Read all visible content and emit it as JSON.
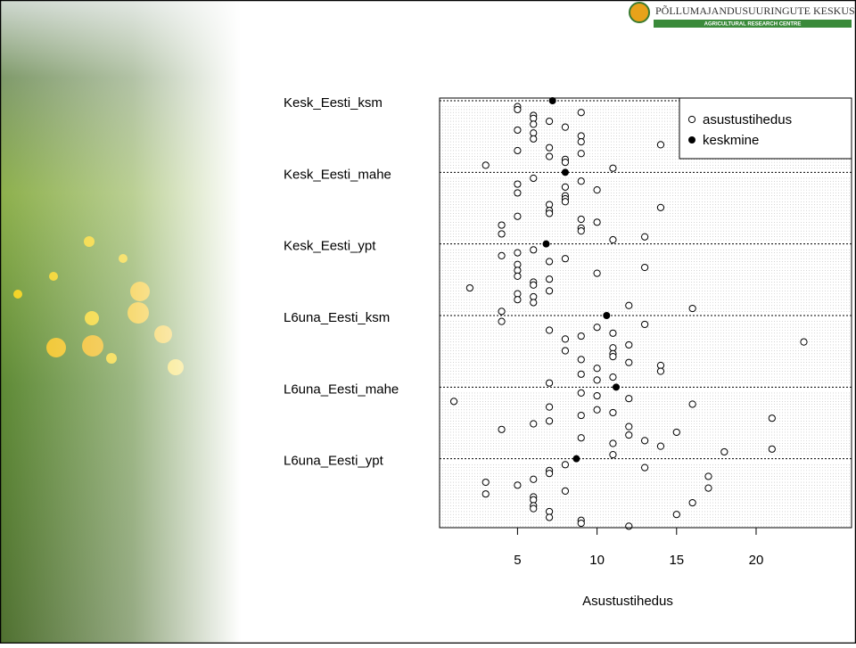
{
  "header": {
    "title": "PÕLLUMAJANDUSUURINGUTE KESKUS",
    "subtitle": "AGRICULTURAL RESEARCH CENTRE"
  },
  "chart_data": {
    "type": "dotchart",
    "xlabel": "Asustustihedus",
    "xlim": [
      0.1,
      26
    ],
    "xticks": [
      5,
      10,
      15,
      20
    ],
    "legend": {
      "points": "asustustihedus",
      "mean": "keskmine"
    },
    "legend_position": "top-right",
    "point_color": "#000000",
    "mean_color": "#000000",
    "groups": [
      {
        "name": "Kesk_Eesti_ksm",
        "mean": 7.2,
        "values": [
          5,
          5,
          9,
          6,
          6,
          7,
          6,
          8,
          5,
          6,
          9,
          6,
          9,
          14,
          7,
          5,
          9,
          7,
          8,
          8,
          3,
          11
        ]
      },
      {
        "name": "Kesk_Eesti_mahe",
        "mean": 8,
        "values": [
          6,
          9,
          5,
          8,
          10,
          5,
          8,
          8,
          8,
          7,
          14,
          7,
          7,
          5,
          9,
          10,
          4,
          9,
          9,
          4,
          13,
          11
        ]
      },
      {
        "name": "Kesk_Eesti_ypt",
        "mean": 6.8,
        "values": [
          6,
          5,
          4,
          8,
          7,
          5,
          13,
          5,
          10,
          5,
          7,
          6,
          6,
          2,
          7,
          5,
          6,
          5,
          6,
          12,
          16,
          4
        ]
      },
      {
        "name": "L6una_Eesti_ksm",
        "mean": 10.6,
        "values": [
          4,
          13,
          10,
          7,
          11,
          9,
          8,
          23,
          12,
          11,
          8,
          11,
          11,
          9,
          12,
          14,
          10,
          14,
          9,
          11,
          10,
          7
        ]
      },
      {
        "name": "L6una_Eesti_mahe",
        "mean": 11.2,
        "values": [
          9,
          10,
          12,
          1,
          16,
          7,
          10,
          11,
          9,
          21,
          7,
          6,
          12,
          4,
          15,
          12,
          9,
          13,
          11,
          14,
          21,
          18,
          11
        ]
      },
      {
        "name": "L6una_Eesti_ypt",
        "mean": 8.7,
        "values": [
          8,
          13,
          7,
          7,
          17,
          6,
          3,
          5,
          17,
          8,
          3,
          6,
          6,
          16,
          6,
          6,
          7,
          15,
          7,
          9,
          9,
          12
        ]
      }
    ]
  }
}
